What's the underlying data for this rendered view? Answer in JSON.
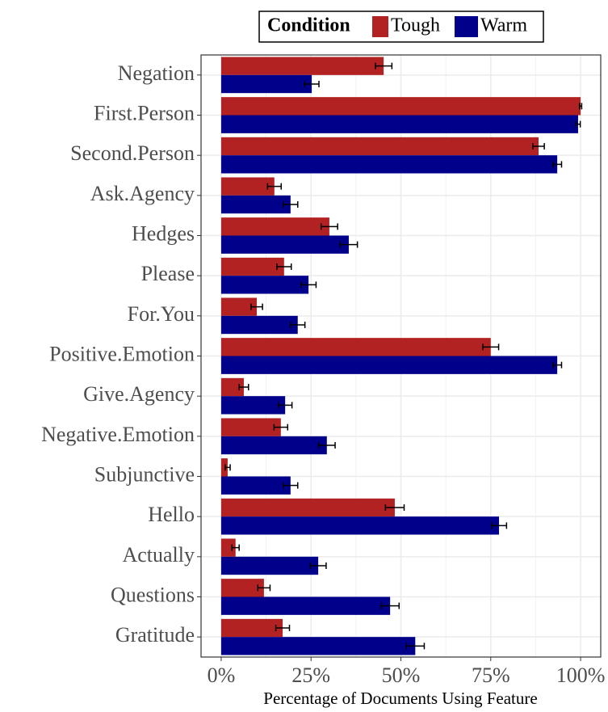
{
  "chart_data": {
    "type": "hbar",
    "xlabel": "Percentage of Documents Using Feature",
    "legend_title": "Condition",
    "legend_position": "top",
    "grid": true,
    "categories": [
      "Negation",
      "First.Person",
      "Second.Person",
      "Ask.Agency",
      "Hedges",
      "Please",
      "For.You",
      "Positive.Emotion",
      "Give.Agency",
      "Negative.Emotion",
      "Subjunctive",
      "Hello",
      "Actually",
      "Questions",
      "Gratitude"
    ],
    "series": [
      {
        "name": "Tough",
        "color": "#b22222",
        "values": [
          45.2,
          100,
          88.3,
          14.8,
          30.1,
          17.5,
          9.9,
          75,
          6.3,
          16.6,
          1.8,
          48.3,
          4,
          11.9,
          17.1
        ],
        "errors": [
          2.3,
          0.3,
          1.6,
          1.9,
          2.3,
          2,
          1.6,
          2.2,
          1.3,
          1.9,
          0.7,
          2.6,
          1,
          1.7,
          1.9
        ]
      },
      {
        "name": "Warm",
        "color": "#00008b",
        "values": [
          25.2,
          99.3,
          93.5,
          19.3,
          35.5,
          24.3,
          21.3,
          93.5,
          17.8,
          29.4,
          19.3,
          77.3,
          27,
          47,
          54
        ],
        "errors": [
          2,
          0.6,
          1.2,
          2,
          2.4,
          2.1,
          2,
          1.2,
          1.9,
          2.3,
          2,
          2.1,
          2.2,
          2.5,
          2.5
        ]
      }
    ],
    "xlim": [
      -5.6,
      105.6
    ],
    "xticks": [
      {
        "value": 0,
        "label": "0%"
      },
      {
        "value": 25,
        "label": "25%"
      },
      {
        "value": 50,
        "label": "50%"
      },
      {
        "value": 75,
        "label": "75%"
      },
      {
        "value": 100,
        "label": "100%"
      }
    ]
  }
}
